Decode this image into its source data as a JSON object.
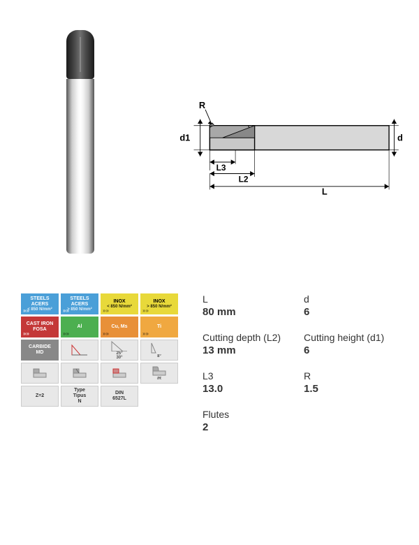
{
  "diagram": {
    "labels": {
      "R": "R",
      "d1": "d1",
      "L3": "L3",
      "L2": "L2",
      "L": "L",
      "d": "d"
    },
    "colors": {
      "stroke": "#000000",
      "fill_body": "#d0d0d0",
      "fill_dark": "#808080"
    }
  },
  "icon_grid": [
    {
      "text": "STEELS\nACERS",
      "sub": "< 850 N/mm²",
      "bg": "#4a9fd8",
      "fg": "#ffffff",
      "arrow": "light"
    },
    {
      "text": "STEELS\nACERS",
      "sub": "> 850 N/mm²",
      "bg": "#4a9fd8",
      "fg": "#ffffff",
      "arrow": "light"
    },
    {
      "text": "INOX",
      "sub": "< 850 N/mm²",
      "bg": "#e8d93a",
      "fg": "#000000",
      "arrow": "dark"
    },
    {
      "text": "INOX",
      "sub": "> 850 N/mm²",
      "bg": "#e8d93a",
      "fg": "#000000",
      "arrow": "dark"
    },
    {
      "text": "CAST IRON\nFOSA",
      "sub": "",
      "bg": "#c43838",
      "fg": "#ffffff",
      "arrow": "light"
    },
    {
      "text": "Al",
      "sub": "",
      "bg": "#4caf50",
      "fg": "#ffffff",
      "arrow": "dark"
    },
    {
      "text": "Cu, Ms",
      "sub": "",
      "bg": "#e89038",
      "fg": "#ffffff",
      "arrow": "dark"
    },
    {
      "text": "Ti",
      "sub": "",
      "bg": "#f0a840",
      "fg": "#ffffff",
      "arrow": "dark"
    },
    {
      "text": "CARBIDE\nMD",
      "sub": "",
      "bg": "#888888",
      "fg": "#ffffff",
      "arrow": ""
    },
    {
      "text": "",
      "sub": "",
      "bg": "#e8e8e8",
      "fg": "#333333",
      "icon": "angle1"
    },
    {
      "text": "",
      "sub": "25°\n30°",
      "bg": "#e8e8e8",
      "fg": "#333333",
      "icon": "angle2"
    },
    {
      "text": "",
      "sub": "8°",
      "bg": "#e8e8e8",
      "fg": "#333333",
      "icon": "angle3"
    },
    {
      "text": "",
      "sub": "",
      "bg": "#e8e8e8",
      "fg": "#333333",
      "icon": "profile1"
    },
    {
      "text": "",
      "sub": "",
      "bg": "#e8e8e8",
      "fg": "#333333",
      "icon": "profile2"
    },
    {
      "text": "",
      "sub": "",
      "bg": "#e8e8e8",
      "fg": "#333333",
      "icon": "profile3"
    },
    {
      "text": "",
      "sub": "/R",
      "bg": "#e8e8e8",
      "fg": "#333333",
      "icon": "profile4"
    },
    {
      "text": "Z=2",
      "sub": "",
      "bg": "#e8e8e8",
      "fg": "#333333"
    },
    {
      "text": "Type\nTipus\nN",
      "sub": "",
      "bg": "#e8e8e8",
      "fg": "#333333"
    },
    {
      "text": "DIN\n6527L",
      "sub": "",
      "bg": "#e8e8e8",
      "fg": "#333333"
    }
  ],
  "specs": [
    {
      "label": "L",
      "value": "80 mm"
    },
    {
      "label": "d",
      "value": "6"
    },
    {
      "label": "Cutting depth (L2)",
      "value": "13 mm"
    },
    {
      "label": "Cutting height (d1)",
      "value": "6"
    },
    {
      "label": "L3",
      "value": "13.0"
    },
    {
      "label": "R",
      "value": "1.5"
    },
    {
      "label": "Flutes",
      "value": "2"
    }
  ]
}
